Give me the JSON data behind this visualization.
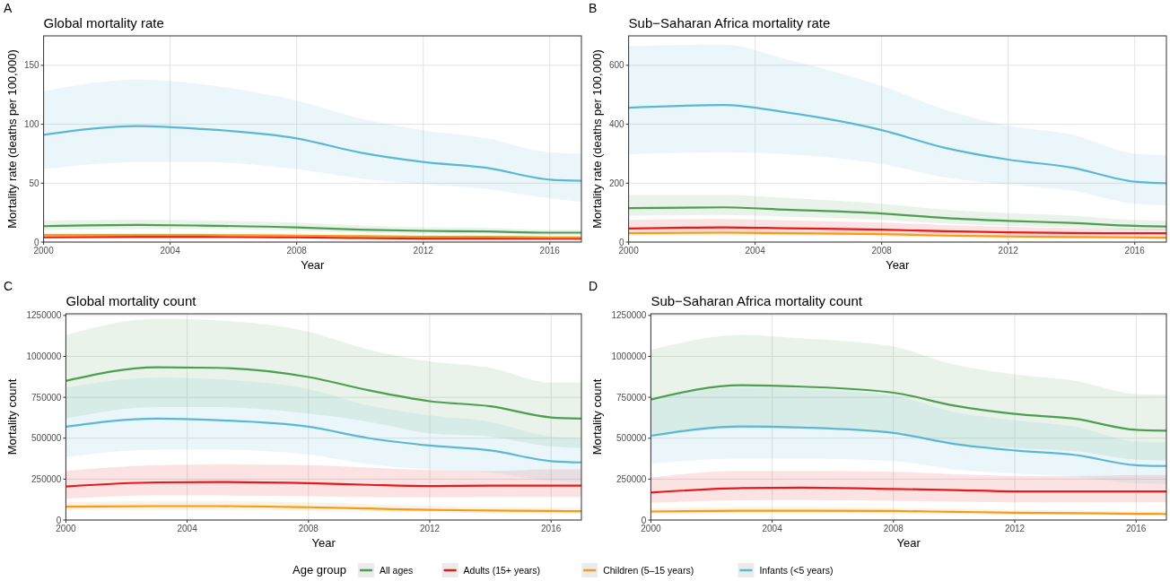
{
  "chart_data": [
    {
      "type": "line",
      "title": "Global mortality rate",
      "annotations": [
        "A"
      ],
      "xlabel": "Year",
      "ylabel": "Mortality rate (deaths per 100,000)",
      "x": [
        2000,
        2003,
        2005,
        2008,
        2010,
        2012,
        2014,
        2016,
        2017
      ],
      "xlim": [
        2000,
        2017
      ],
      "xticks": [
        2000,
        2004,
        2008,
        2012,
        2016
      ],
      "ylim": [
        0,
        175
      ],
      "yticks": [
        0,
        50,
        100,
        150
      ],
      "grid": true,
      "legend": "bottom",
      "legend_title": "Age group",
      "line_style": "solid",
      "series": [
        {
          "name": "All ages",
          "color": "#4c9f50",
          "values": [
            13.5,
            14.5,
            14,
            12.5,
            10.5,
            9.5,
            9,
            8,
            8
          ],
          "lower": [
            10,
            11,
            11,
            9.5,
            8,
            7,
            7,
            6,
            6
          ],
          "upper": [
            18,
            19,
            18.5,
            16.5,
            14,
            12.5,
            12,
            10.5,
            10.5
          ]
        },
        {
          "name": "Adults (15+ years)",
          "color": "#e8191a",
          "values": [
            4,
            4.5,
            4.5,
            4,
            3.5,
            3,
            3,
            3,
            3
          ],
          "lower": [
            3,
            3,
            3,
            3,
            2.5,
            2,
            2,
            2,
            2
          ],
          "upper": [
            5.5,
            6,
            6,
            5.5,
            4.5,
            4,
            4,
            4,
            4
          ]
        },
        {
          "name": "Children (5–15 years)",
          "color": "#f39c1b",
          "values": [
            6,
            6,
            6,
            5.5,
            5,
            4.5,
            4.5,
            4,
            4
          ],
          "lower": [
            4.5,
            4.5,
            4.5,
            4,
            3.5,
            3.5,
            3.5,
            3,
            3
          ],
          "upper": [
            8,
            8,
            8,
            7.5,
            6.5,
            6,
            6,
            5.5,
            5.5
          ]
        },
        {
          "name": "Infants (<5 years)",
          "color": "#5bb8d4",
          "values": [
            91,
            98.5,
            96,
            88,
            76,
            68,
            63,
            53,
            52
          ],
          "lower": [
            62,
            68,
            68,
            62,
            54,
            49,
            45,
            37,
            34
          ],
          "upper": [
            128,
            138,
            134,
            120,
            105,
            95,
            88,
            76,
            75
          ]
        }
      ]
    },
    {
      "type": "line",
      "title": "Sub−Saharan Africa mortality rate",
      "annotations": [
        "B"
      ],
      "xlabel": "Year",
      "ylabel": "Mortality rate (deaths per 100,000)",
      "x": [
        2000,
        2003,
        2005,
        2008,
        2010,
        2012,
        2014,
        2016,
        2017
      ],
      "xlim": [
        2000,
        2017
      ],
      "xticks": [
        2000,
        2004,
        2008,
        2012,
        2016
      ],
      "ylim": [
        0,
        700
      ],
      "yticks": [
        0,
        200,
        400,
        600
      ],
      "grid": true,
      "line_style": "solid",
      "series": [
        {
          "color": "#4c9f50",
          "values": [
            115,
            118,
            110,
            97,
            82,
            72,
            65,
            55,
            53
          ],
          "lower": [
            90,
            92,
            86,
            75,
            63,
            55,
            50,
            42,
            40
          ],
          "upper": [
            160,
            160,
            150,
            130,
            110,
            98,
            90,
            75,
            72
          ]
        },
        {
          "color": "#e8191a",
          "values": [
            46,
            50,
            47,
            42,
            37,
            33,
            31,
            30,
            30
          ],
          "lower": [
            30,
            32,
            30,
            27,
            24,
            21,
            20,
            19,
            19
          ],
          "upper": [
            75,
            78,
            74,
            66,
            58,
            52,
            48,
            46,
            46
          ]
        },
        {
          "color": "#f39c1b",
          "values": [
            30,
            32,
            30,
            27,
            22,
            19,
            17,
            16,
            15
          ],
          "lower": [
            22,
            23,
            22,
            19,
            16,
            13,
            12,
            11,
            10
          ],
          "upper": [
            40,
            42,
            40,
            36,
            30,
            26,
            24,
            22,
            21
          ]
        },
        {
          "color": "#5bb8d4",
          "values": [
            456,
            465,
            440,
            380,
            320,
            280,
            253,
            205,
            200
          ],
          "lower": [
            298,
            305,
            298,
            265,
            220,
            195,
            175,
            130,
            125
          ],
          "upper": [
            665,
            670,
            620,
            530,
            450,
            395,
            365,
            300,
            295
          ]
        }
      ]
    },
    {
      "type": "line",
      "title": "Global mortality count",
      "annotations": [
        "C"
      ],
      "xlabel": "Year",
      "ylabel": "Mortality count",
      "x": [
        2000,
        2003,
        2005,
        2008,
        2010,
        2012,
        2014,
        2016,
        2017
      ],
      "xlim": [
        2000,
        2017
      ],
      "xticks": [
        2000,
        2004,
        2008,
        2012,
        2016
      ],
      "ylim": [
        0,
        1260000
      ],
      "yticks": [
        0,
        250000,
        500000,
        750000,
        1000000,
        1250000
      ],
      "grid": true,
      "line_style": "solid",
      "series": [
        {
          "color": "#4c9f50",
          "values": [
            850000,
            933000,
            930000,
            874000,
            792000,
            726000,
            695000,
            627000,
            620000
          ],
          "lower": [
            620000,
            690000,
            690000,
            650000,
            600000,
            530000,
            510000,
            450000,
            440000
          ],
          "upper": [
            1130000,
            1230000,
            1220000,
            1150000,
            1040000,
            970000,
            930000,
            840000,
            840000
          ]
        },
        {
          "color": "#e8191a",
          "values": [
            205000,
            230000,
            232000,
            225000,
            215000,
            208000,
            210000,
            210000,
            210000
          ],
          "lower": [
            130000,
            150000,
            150000,
            145000,
            140000,
            138000,
            140000,
            140000,
            140000
          ],
          "upper": [
            300000,
            335000,
            340000,
            335000,
            320000,
            305000,
            300000,
            310000,
            310000
          ]
        },
        {
          "color": "#f39c1b",
          "values": [
            82000,
            85000,
            85000,
            78000,
            70000,
            62000,
            58000,
            55000,
            54000
          ],
          "lower": [
            60000,
            62000,
            62000,
            58000,
            52000,
            46000,
            43000,
            40000,
            40000
          ],
          "upper": [
            110000,
            115000,
            115000,
            108000,
            96000,
            86000,
            80000,
            76000,
            75000
          ]
        },
        {
          "color": "#5bb8d4",
          "values": [
            570000,
            620000,
            610000,
            570000,
            500000,
            455000,
            425000,
            360000,
            352000
          ],
          "lower": [
            385000,
            430000,
            430000,
            400000,
            340000,
            310000,
            290000,
            240000,
            230000
          ],
          "upper": [
            810000,
            870000,
            860000,
            800000,
            700000,
            640000,
            600000,
            510000,
            500000
          ]
        }
      ]
    },
    {
      "type": "line",
      "title": "Sub−Saharan Africa mortality count",
      "annotations": [
        "D"
      ],
      "xlabel": "Year",
      "ylabel": "Mortality count",
      "x": [
        2000,
        2003,
        2005,
        2008,
        2010,
        2012,
        2014,
        2016,
        2017
      ],
      "xlim": [
        2000,
        2017
      ],
      "xticks": [
        2000,
        2004,
        2008,
        2012,
        2016
      ],
      "ylim": [
        0,
        1260000
      ],
      "yticks": [
        0,
        250000,
        500000,
        750000,
        1000000,
        1250000
      ],
      "grid": true,
      "line_style": "solid",
      "series": [
        {
          "color": "#4c9f50",
          "values": [
            736000,
            824000,
            815000,
            778000,
            699000,
            648000,
            618000,
            551000,
            546000
          ],
          "lower": [
            510000,
            560000,
            560000,
            530000,
            470000,
            440000,
            420000,
            370000,
            365000
          ],
          "upper": [
            1040000,
            1130000,
            1110000,
            1060000,
            950000,
            890000,
            850000,
            770000,
            765000
          ]
        },
        {
          "color": "#e8191a",
          "values": [
            168000,
            195000,
            198000,
            190000,
            183000,
            175000,
            175000,
            175000,
            175000
          ],
          "lower": [
            105000,
            120000,
            122000,
            118000,
            112000,
            108000,
            108000,
            108000,
            108000
          ],
          "upper": [
            260000,
            300000,
            300000,
            295000,
            280000,
            270000,
            268000,
            275000,
            275000
          ]
        },
        {
          "color": "#f39c1b",
          "values": [
            52000,
            57000,
            57000,
            55000,
            50000,
            45000,
            42000,
            38000,
            37000
          ],
          "lower": [
            38000,
            42000,
            42000,
            40000,
            36000,
            33000,
            30000,
            27000,
            27000
          ],
          "upper": [
            72000,
            80000,
            80000,
            76000,
            70000,
            63000,
            58000,
            53000,
            52000
          ]
        },
        {
          "color": "#5bb8d4",
          "values": [
            515000,
            572000,
            565000,
            532000,
            465000,
            425000,
            397000,
            335000,
            330000
          ],
          "lower": [
            345000,
            375000,
            375000,
            360000,
            310000,
            285000,
            265000,
            225000,
            220000
          ],
          "upper": [
            740000,
            810000,
            800000,
            760000,
            660000,
            610000,
            570000,
            480000,
            475000
          ]
        }
      ]
    }
  ]
}
